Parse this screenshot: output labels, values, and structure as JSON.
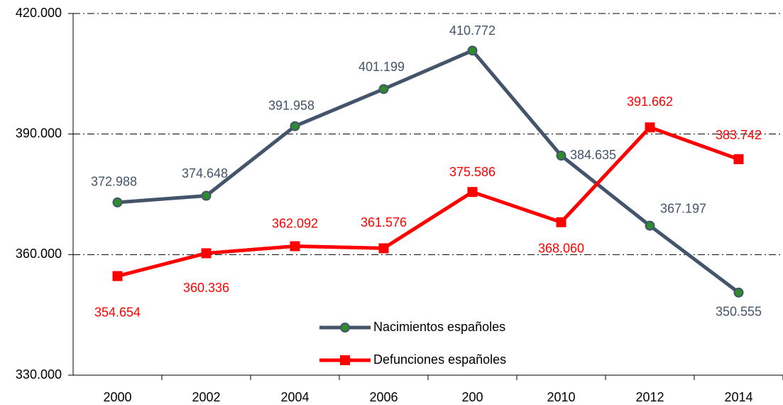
{
  "chart_data": {
    "type": "line",
    "categories": [
      "2000",
      "2002",
      "2004",
      "2006",
      "200",
      "2010",
      "2012",
      "2014"
    ],
    "series": [
      {
        "name": "Nacimientos españoles",
        "color": "#44546a",
        "marker_color": "#2e8b2e",
        "values": [
          372988,
          374648,
          391958,
          401199,
          410772,
          384635,
          367197,
          350555
        ],
        "value_labels": [
          "372.988",
          "374.648",
          "391.958",
          "401.199",
          "410.772",
          "384.635",
          "367.197",
          "350.555"
        ]
      },
      {
        "name": "Defunciones españoles",
        "color": "#ff0000",
        "values": [
          354654,
          360336,
          362092,
          361576,
          375586,
          368060,
          391662,
          383742
        ],
        "value_labels": [
          "354.654",
          "360.336",
          "362.092",
          "361.576",
          "375.586",
          "368.060",
          "391.662",
          "383.742"
        ]
      }
    ],
    "ylim": [
      330000,
      420000
    ],
    "yticks": [
      {
        "value": 330000,
        "label": "330.000"
      },
      {
        "value": 360000,
        "label": "360.000"
      },
      {
        "value": 390000,
        "label": "390.000"
      },
      {
        "value": 420000,
        "label": "420.000"
      }
    ],
    "grid": true
  }
}
